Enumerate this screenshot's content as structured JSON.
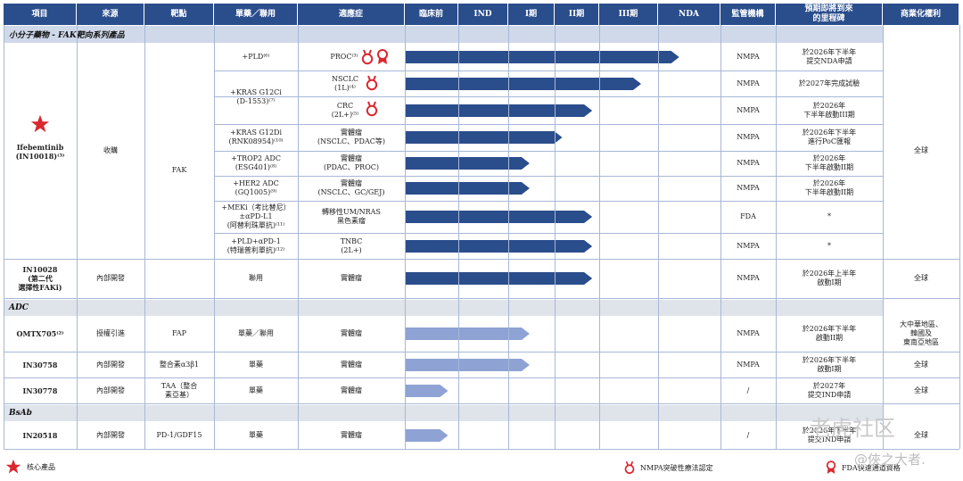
{
  "header": [
    "項目",
    "來源",
    "靶點",
    "單藥／聯用",
    "適應症",
    "臨床前",
    "IND",
    "I期",
    "II期",
    "III期",
    "NDA",
    "監管機構",
    "預期即將到來\n的里程碑",
    "商業化權利"
  ],
  "bands": {
    "small_molecule": "小分子藥物 - FAK靶向系列產品",
    "adc": "ADC",
    "bsab": "BsAb"
  },
  "merged": {
    "ifeb_name": "Ifebemtinib\n(IN10018)⁽³⁾",
    "ifeb_source": "收購",
    "fak": "FAK",
    "global": "全球"
  },
  "rows": [
    {
      "combo": "+PLD⁽⁶⁾",
      "ind": "PROC⁽³⁾",
      "reg": "NMPA",
      "ms": "於2026年下半年\n提交NDA申請",
      "prog": 0.94,
      "color": "#2a4d8c"
    },
    {
      "combo": "+KRAS G12Ci\n(D-1553)⁽⁷⁾",
      "ind": "NSCLC\n(1L)⁽⁴⁾",
      "reg": "NMPA",
      "ms": "於2027年完成試驗",
      "prog": 0.8,
      "color": "#2a4d8c"
    },
    {
      "combo": "",
      "ind": "CRC\n(2L+)⁽⁵⁾",
      "reg": "NMPA",
      "ms": "於2026年\n下半年啟動III期",
      "prog": 0.62,
      "color": "#2a4d8c"
    },
    {
      "combo": "+KRAS G12Di\n(RNK08954)⁽¹⁰⁾",
      "ind": "實體瘤\n(NSCLC、PDAC等)",
      "reg": "NMPA",
      "ms": "於2026年下半年\n進行PoC匯報",
      "prog": 0.51,
      "color": "#2a4d8c"
    },
    {
      "combo": "+TROP2 ADC\n(ESG401)⁽⁸⁾",
      "ind": "實體瘤\n(PDAC、PROC)",
      "reg": "NMPA",
      "ms": "於2026年\n下半年啟動II期",
      "prog": 0.39,
      "color": "#2a4d8c"
    },
    {
      "combo": "+HER2 ADC\n(GQ1005)⁽⁹⁾",
      "ind": "實體瘤\n(NSCLC、GC/GEJ)",
      "reg": "NMPA",
      "ms": "於2026年\n下半年啟動II期",
      "prog": 0.39,
      "color": "#2a4d8c"
    },
    {
      "combo": "+MEKi（考比替尼）\n±αPD-L1\n(阿替利珠單抗)⁽¹¹⁾",
      "ind": "轉移性UM/NRAS\n黑色素瘤",
      "reg": "FDA",
      "ms": "*",
      "prog": 0.62,
      "color": "#2a4d8c"
    },
    {
      "combo": "+PLD+αPD-1\n(特瑞普利單抗)⁽¹²⁾",
      "ind": "TNBC\n(2L+)",
      "reg": "NMPA",
      "ms": "*",
      "prog": 0.62,
      "color": "#2a4d8c"
    },
    {
      "name": "IN10028\n(第二代\n選擇性FAKi)",
      "source": "內部開發",
      "combo": "聯用",
      "ind": "實體瘤",
      "reg": "NMPA",
      "ms": "於2026年上半年\n啟動I期",
      "rights": "全球",
      "prog": 0.62,
      "color": "#2a4d8c"
    },
    {
      "name": "OMTX705⁽²⁾",
      "source": "授權引進",
      "target": "FAP",
      "combo": "單藥／聯用",
      "ind": "實體瘤",
      "reg": "NMPA",
      "ms": "於2026年下半年\n啟動II期",
      "rights": "大中華地區、\n韓國及\n東南亞地區",
      "prog": 0.39,
      "color": "#8ea2d4"
    },
    {
      "name": "IN30758",
      "source": "內部開發",
      "target": "整合素α3β1",
      "combo": "單藥",
      "ind": "實體瘤",
      "reg": "NMPA",
      "ms": "於2026年下半年\n啟動I期",
      "rights": "全球",
      "prog": 0.39,
      "color": "#8ea2d4"
    },
    {
      "name": "IN30778",
      "source": "內部開發",
      "target": "TAA（整合\n素亞基）",
      "combo": "單藥",
      "ind": "實體瘤",
      "reg": "/",
      "ms": "於2027年\n提交IND申請",
      "rights": "全球",
      "prog": 0.09,
      "color": "#8ea2d4"
    },
    {
      "name": "IN20518",
      "source": "內部開發",
      "target": "PD-1/GDF15",
      "combo": "單藥",
      "ind": "實體瘤",
      "reg": "/",
      "ms": "於2026年下半年\n提交IND申請",
      "rights": "全球",
      "prog": 0.09,
      "color": "#8ea2d4"
    }
  ],
  "legend": {
    "core": "核心產品",
    "btd": "NMPA突破性療法認定",
    "fda": "FDA快速通道資格"
  },
  "watermark": {
    "brand": "老虎社区",
    "user": "@俠之大者."
  },
  "colors": {
    "header": "#2a4d8c",
    "bar_dark": "#2a4d8c",
    "bar_light": "#8ea2d4",
    "icon_red": "#d9282f"
  }
}
